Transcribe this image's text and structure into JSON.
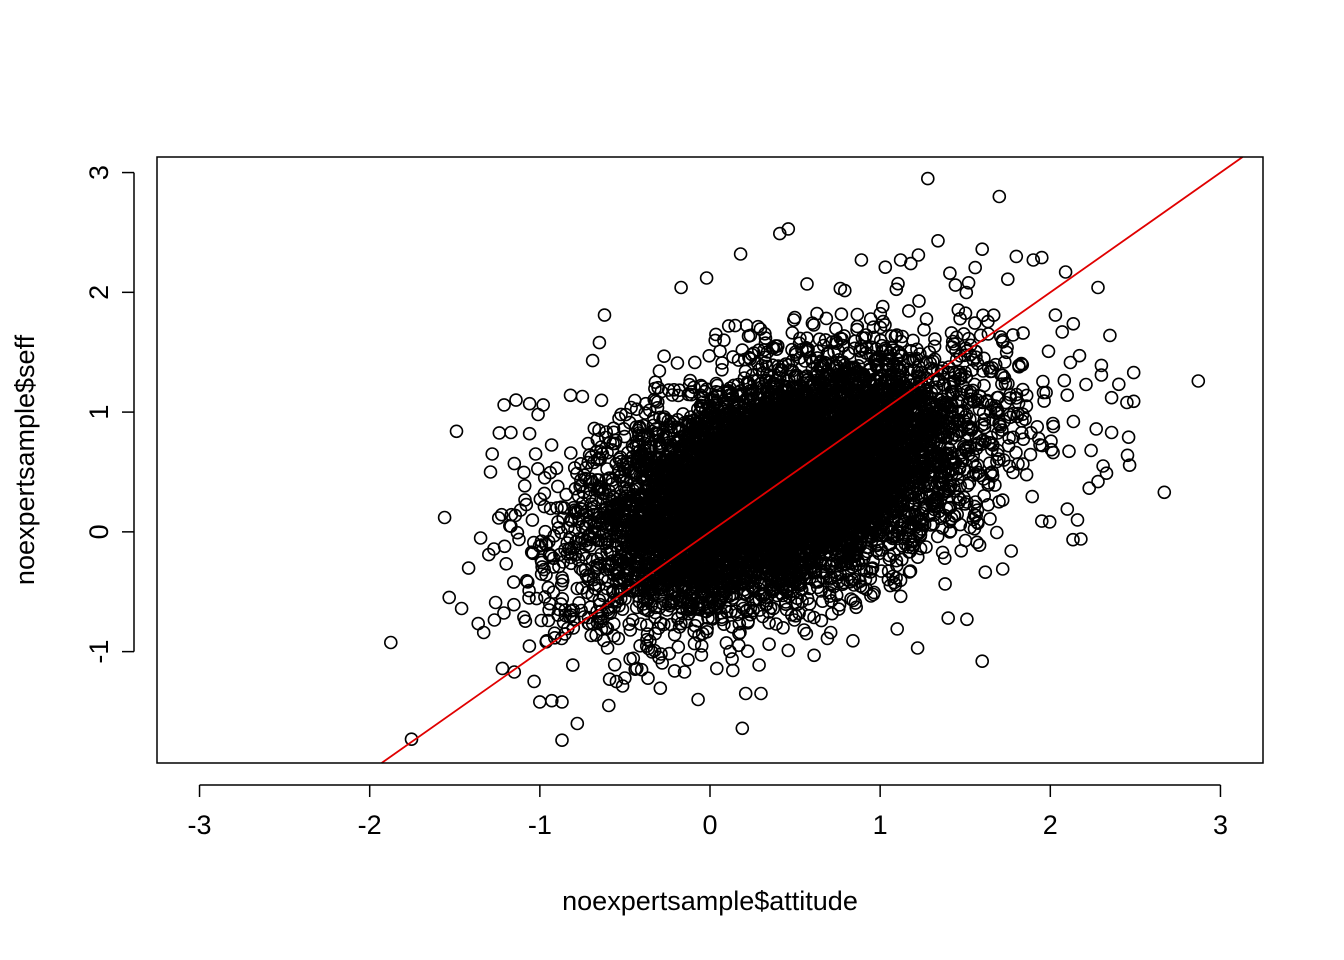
{
  "chart_data": {
    "type": "scatter",
    "title": "",
    "xlabel": "noexpertsample$attitude",
    "ylabel": "noexpertsample$seff",
    "xlim": [
      -3.25,
      3.25
    ],
    "ylim": [
      -1.93,
      3.13
    ],
    "xticks": [
      -3,
      -2,
      -1,
      0,
      1,
      2,
      3
    ],
    "yticks": [
      -1,
      0,
      1,
      2,
      3
    ],
    "xtick_labels": [
      "-3",
      "-2",
      "-1",
      "0",
      "1",
      "2",
      "3"
    ],
    "ytick_labels": [
      "-1",
      "0",
      "1",
      "2",
      "3"
    ],
    "grid": false,
    "legend": "none",
    "point_marker": "open-circle",
    "point_color": "#000000",
    "line_color": "#e00000",
    "series": [
      {
        "type": "scatter",
        "note_visible_outliers": true,
        "center": [
          0.4,
          0.4
        ],
        "sd": [
          0.55,
          0.5
        ],
        "correlation": 0.45,
        "n_points": 9000,
        "points": [
          [
            -1.56,
            0.12
          ],
          [
            -1.49,
            0.84
          ],
          [
            -1.46,
            -0.64
          ],
          [
            -1.33,
            -0.84
          ],
          [
            -1.3,
            -0.19
          ],
          [
            -1.28,
            0.65
          ],
          [
            -1.29,
            0.5
          ],
          [
            -1.26,
            -0.59
          ],
          [
            -1.22,
            -1.14
          ],
          [
            -1.21,
            1.06
          ],
          [
            -1.14,
            1.1
          ],
          [
            -1.17,
            0.83
          ],
          [
            -1.15,
            0.57
          ],
          [
            -1.15,
            -1.17
          ],
          [
            -1.06,
            1.07
          ],
          [
            -1.06,
            0.82
          ],
          [
            -1.01,
            0.98
          ],
          [
            -0.98,
            1.06
          ],
          [
            -1.0,
            -1.42
          ],
          [
            -0.96,
            -0.91
          ],
          [
            -0.93,
            -1.41
          ],
          [
            -0.87,
            -1.74
          ],
          [
            -0.87,
            -1.42
          ],
          [
            -0.78,
            -1.6
          ],
          [
            -0.75,
            1.13
          ],
          [
            -0.82,
            1.14
          ],
          [
            -0.62,
            1.81
          ],
          [
            -0.69,
            1.43
          ],
          [
            -0.65,
            1.58
          ],
          [
            -0.59,
            -1.23
          ],
          [
            -0.55,
            -1.25
          ],
          [
            -0.5,
            -1.22
          ],
          [
            -0.17,
            2.04
          ],
          [
            -0.07,
            -1.4
          ],
          [
            -0.02,
            2.12
          ],
          [
            0.11,
            1.72
          ],
          [
            0.18,
            2.32
          ],
          [
            0.19,
            -1.64
          ],
          [
            0.21,
            -1.35
          ],
          [
            0.3,
            -1.35
          ],
          [
            0.41,
            2.49
          ],
          [
            0.46,
            2.53
          ],
          [
            0.57,
            2.07
          ],
          [
            0.69,
            -0.89
          ],
          [
            0.89,
            2.27
          ],
          [
            1.03,
            2.21
          ],
          [
            1.12,
            2.27
          ],
          [
            1.18,
            2.24
          ],
          [
            1.28,
            2.95
          ],
          [
            1.34,
            2.43
          ],
          [
            1.41,
            2.16
          ],
          [
            1.47,
            1.78
          ],
          [
            1.52,
            2.08
          ],
          [
            1.6,
            2.36
          ],
          [
            1.6,
            -1.08
          ],
          [
            1.7,
            2.8
          ],
          [
            1.75,
            2.11
          ],
          [
            1.8,
            2.3
          ],
          [
            1.9,
            2.27
          ],
          [
            1.95,
            2.29
          ],
          [
            2.09,
            2.17
          ],
          [
            2.03,
            1.81
          ],
          [
            2.07,
            1.67
          ],
          [
            2.28,
            2.04
          ],
          [
            2.35,
            1.64
          ],
          [
            2.3,
            1.39
          ],
          [
            2.21,
            1.23
          ],
          [
            2.3,
            1.31
          ],
          [
            2.36,
            1.12
          ],
          [
            2.45,
            1.08
          ],
          [
            2.49,
            1.33
          ],
          [
            2.49,
            1.09
          ],
          [
            2.46,
            0.79
          ],
          [
            2.27,
            0.86
          ],
          [
            2.36,
            0.83
          ],
          [
            2.31,
            0.55
          ],
          [
            2.33,
            0.49
          ],
          [
            2.24,
            0.68
          ],
          [
            2.28,
            0.42
          ],
          [
            2.16,
            0.1
          ],
          [
            2.18,
            -0.06
          ],
          [
            2.67,
            0.33
          ],
          [
            2.87,
            1.26
          ],
          [
            2.1,
            0.19
          ],
          [
            1.95,
            0.09
          ],
          [
            1.72,
            -0.31
          ],
          [
            1.77,
            -0.16
          ],
          [
            1.51,
            -0.73
          ],
          [
            1.4,
            -0.72
          ],
          [
            1.22,
            -0.97
          ],
          [
            1.1,
            -0.81
          ],
          [
            0.84,
            -0.91
          ],
          [
            0.46,
            -0.99
          ],
          [
            0.04,
            -1.14
          ],
          [
            -0.15,
            -1.17
          ],
          [
            -0.3,
            -1.05
          ],
          [
            -0.43,
            -1.14
          ],
          [
            -0.56,
            -1.11
          ],
          [
            -0.8,
            -0.73
          ],
          [
            -0.95,
            -0.74
          ]
        ]
      },
      {
        "type": "line",
        "intercept": 0.0,
        "slope": 1.0,
        "x_range": [
          -1.93,
          3.13
        ]
      }
    ]
  }
}
